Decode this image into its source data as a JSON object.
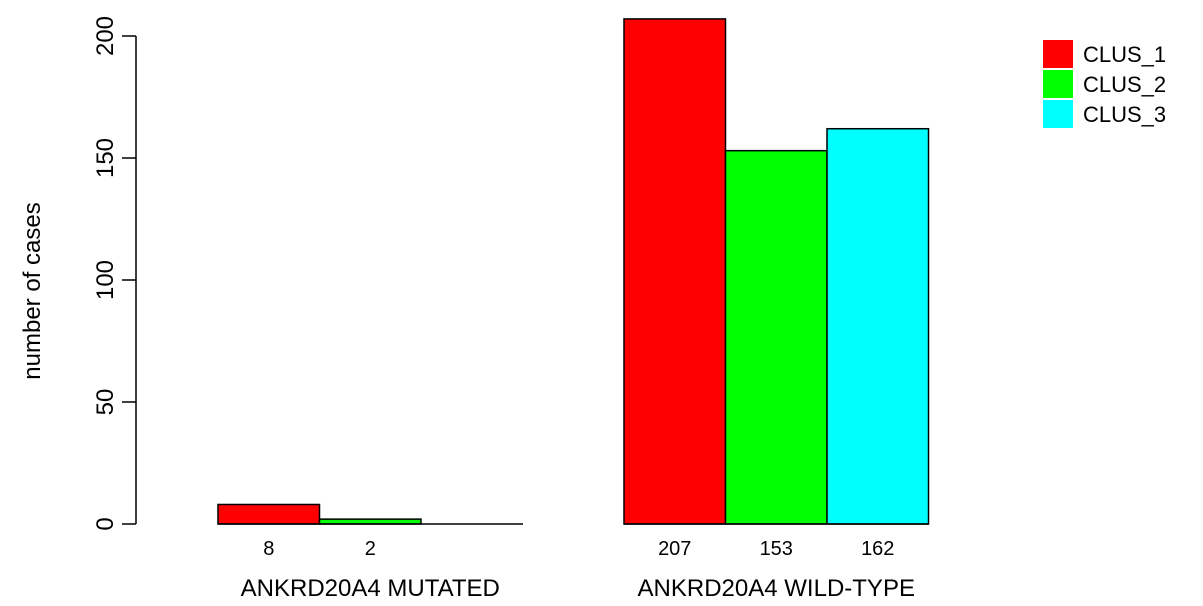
{
  "chart_data": {
    "type": "bar",
    "categories": [
      "ANKRD20A4 MUTATED",
      "ANKRD20A4 WILD-TYPE"
    ],
    "series": [
      {
        "name": "CLUS_1",
        "color": "#ff0000",
        "values": [
          8,
          207
        ],
        "labels": [
          "8",
          "207"
        ]
      },
      {
        "name": "CLUS_2",
        "color": "#00ff00",
        "values": [
          2,
          153
        ],
        "labels": [
          "2",
          "153"
        ]
      },
      {
        "name": "CLUS_3",
        "color": "#00ffff",
        "values": [
          0,
          162
        ],
        "labels": [
          "",
          "162"
        ]
      }
    ],
    "xlabel": "",
    "ylabel": "number of cases",
    "ylim": [
      0,
      200
    ],
    "yticks": [
      0,
      50,
      100,
      150,
      200
    ],
    "ytick_labels": [
      "0",
      "50",
      "100",
      "150",
      "200"
    ],
    "grid": false,
    "legend_position": "top-right"
  }
}
